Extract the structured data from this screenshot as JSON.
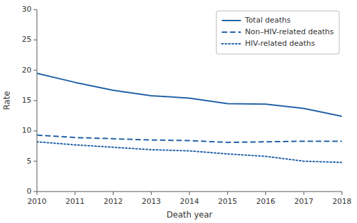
{
  "chart_data": {
    "type": "line",
    "x": [
      2010,
      2011,
      2012,
      2013,
      2014,
      2015,
      2016,
      2017,
      2018
    ],
    "series": [
      {
        "name": "Total deaths",
        "color": "#2060a8",
        "line_style": "solid",
        "values": [
          19.5,
          18.0,
          16.7,
          15.8,
          15.4,
          14.5,
          14.4,
          13.7,
          12.4
        ]
      },
      {
        "name": "Non–HIV-related deaths",
        "color": "#2060a8",
        "line_style": "dashed",
        "values": [
          9.3,
          8.9,
          8.7,
          8.5,
          8.4,
          8.1,
          8.2,
          8.3,
          8.3
        ]
      },
      {
        "name": "HIV-related deaths",
        "color": "#2060a8",
        "line_style": "dotted",
        "values": [
          8.2,
          7.7,
          7.3,
          6.9,
          6.7,
          6.2,
          5.8,
          5.0,
          4.8
        ]
      }
    ],
    "xlabel": "Death year",
    "ylabel": "Rate",
    "xlim": [
      2010,
      2018
    ],
    "xticks": [
      2010,
      2011,
      2012,
      2013,
      2014,
      2015,
      2016,
      2017,
      2018
    ],
    "ylim": [
      0,
      30
    ],
    "yticks": [
      0,
      5,
      10,
      15,
      20,
      25,
      30
    ],
    "grid": false,
    "legend": "upper right"
  }
}
